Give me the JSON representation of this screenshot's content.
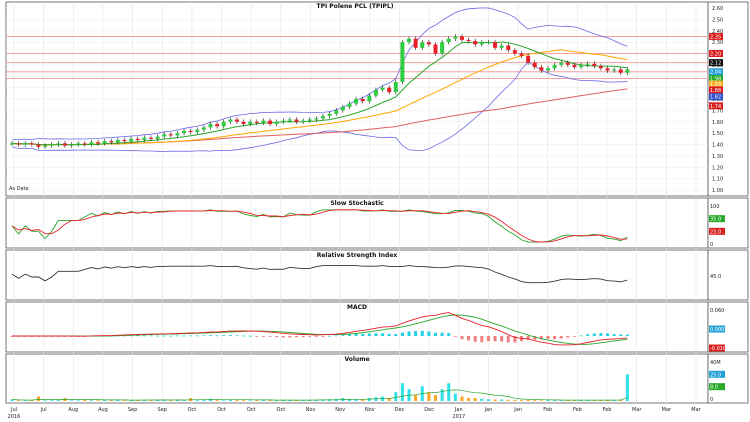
{
  "chart_title": "TPI Polene PCL (TPIPL)",
  "corner_note": "As Date",
  "panel_titles": {
    "stochastic": "Slow Stochastic",
    "rsi": "Relative Strength Index",
    "macd": "MACD",
    "volume": "Volume"
  },
  "x_ticks": [
    "Jul",
    "Jul",
    "Aug",
    "Aug",
    "Sep",
    "Sep",
    "Oct",
    "Oct",
    "Oct",
    "Oct",
    "Nov",
    "Nov",
    "Nov",
    "Dec",
    "Dec",
    "Jan",
    "Jan",
    "Jan",
    "Feb",
    "Feb",
    "Feb",
    "Mar",
    "Mar",
    "Mar"
  ],
  "x_period_labels": [
    "2016",
    "",
    "",
    "",
    "",
    "",
    "",
    "",
    "",
    "",
    "",
    "",
    "",
    "",
    "",
    "2017",
    "",
    "",
    "",
    "",
    "",
    "",
    "",
    ""
  ],
  "price_axis": [
    "2.60",
    "2.50",
    "2.40",
    "2.30",
    "2.20",
    "2.10",
    "2.00",
    "1.90",
    "1.80",
    "1.70",
    "1.60",
    "1.50",
    "1.40",
    "1.30",
    "1.20",
    "1.10",
    "1.00"
  ],
  "price_labels_right": [
    {
      "text": "2.35",
      "color": "#d92020"
    },
    {
      "text": "2.20",
      "color": "#d92020"
    },
    {
      "text": "2.12",
      "color": "#111111"
    },
    {
      "text": "2.04",
      "color": "#22a0d8"
    },
    {
      "text": "1.98",
      "color": "#2aaa2a"
    },
    {
      "text": "1.93",
      "color": "#ffb020"
    },
    {
      "text": "1.88",
      "color": "#d92020"
    },
    {
      "text": "1.82",
      "color": "#3050d0"
    },
    {
      "text": "1.74",
      "color": "#d92020"
    }
  ],
  "stoch_labels": [
    {
      "text": "100",
      "color": "#111111"
    },
    {
      "text": "35.0",
      "color": "#2aaa2a"
    },
    {
      "text": "23.0",
      "color": "#d92020"
    },
    {
      "text": "0",
      "color": "#111111"
    }
  ],
  "rsi_labels": [
    {
      "text": "45.0",
      "color": "#111111"
    }
  ],
  "macd_labels": [
    {
      "text": "0.060",
      "color": "#111111"
    },
    {
      "text": "0.000",
      "color": "#22a0d8"
    },
    {
      "text": "-0.010",
      "color": "#d92020"
    }
  ],
  "volume_labels": [
    {
      "text": "40M",
      "color": "#111111"
    },
    {
      "text": "25.0",
      "color": "#22a0d8"
    },
    {
      "text": "8.0",
      "color": "#2aaa2a"
    },
    {
      "text": "0",
      "color": "#111111"
    }
  ],
  "colors": {
    "up": "#2ecc40",
    "down": "#e8202a",
    "wick": "#111111",
    "sma_short": "#2aa52a",
    "sma_mid": "#ffa500",
    "sma_long": "#e06060",
    "bollinger": "#6a6ae8",
    "hline": "#f2a0a0",
    "stoch_k": "#2aa52a",
    "stoch_d": "#e8202a",
    "rsi": "#333333",
    "macd_line": "#e8202a",
    "signal_line": "#2aa52a",
    "hist": "#22d0e0",
    "vol_up": "#2ee0e8",
    "vol_down": "#ffa520"
  },
  "chart_data": {
    "type": "candlestick",
    "ylim": [
      1.0,
      2.6
    ],
    "horizontal_levels": [
      2.35,
      2.2,
      2.12,
      2.04,
      1.98
    ],
    "series_close": [
      1.41,
      1.4,
      1.41,
      1.4,
      1.38,
      1.39,
      1.4,
      1.41,
      1.39,
      1.4,
      1.41,
      1.4,
      1.42,
      1.41,
      1.43,
      1.42,
      1.44,
      1.43,
      1.45,
      1.44,
      1.46,
      1.45,
      1.47,
      1.49,
      1.48,
      1.5,
      1.52,
      1.51,
      1.53,
      1.55,
      1.58,
      1.56,
      1.6,
      1.62,
      1.6,
      1.58,
      1.6,
      1.59,
      1.61,
      1.58,
      1.6,
      1.61,
      1.62,
      1.6,
      1.61,
      1.62,
      1.63,
      1.65,
      1.67,
      1.7,
      1.73,
      1.76,
      1.8,
      1.78,
      1.83,
      1.88,
      1.9,
      1.86,
      1.95,
      2.3,
      2.33,
      2.25,
      2.3,
      2.28,
      2.2,
      2.3,
      2.33,
      2.35,
      2.32,
      2.31,
      2.28,
      2.3,
      2.3,
      2.25,
      2.27,
      2.23,
      2.2,
      2.18,
      2.12,
      2.08,
      2.05,
      2.07,
      2.1,
      2.12,
      2.1,
      2.08,
      2.1,
      2.11,
      2.09,
      2.07,
      2.05,
      2.06,
      2.03,
      2.06
    ],
    "volume": [
      1,
      0.5,
      0.6,
      0.4,
      3,
      0.5,
      0.6,
      0.7,
      2,
      0.4,
      0.5,
      0.8,
      0.5,
      0.6,
      0.7,
      0.5,
      1,
      0.6,
      0.5,
      0.7,
      0.8,
      0.6,
      1,
      0.7,
      0.5,
      0.9,
      0.6,
      2,
      0.7,
      0.8,
      1.5,
      0.6,
      0.5,
      0.7,
      0.8,
      0.6,
      0.5,
      0.6,
      0.7,
      0.8,
      0.5,
      0.6,
      0.7,
      0.5,
      0.6,
      0.8,
      0.9,
      1,
      1.2,
      1.5,
      2,
      1.5,
      1.2,
      1,
      2,
      2.5,
      3,
      2,
      6,
      12,
      8,
      4,
      10,
      6,
      4,
      8,
      12,
      5,
      3,
      2,
      2,
      1.5,
      1.2,
      1,
      1,
      0.8,
      0.7,
      0.6,
      0.8,
      0.6,
      0.5,
      0.7,
      0.6,
      0.5,
      0.6,
      0.7,
      0.8,
      0.6,
      0.5,
      0.6,
      0.7,
      0.8,
      1,
      18
    ],
    "volume_ylim": [
      0,
      40
    ]
  }
}
